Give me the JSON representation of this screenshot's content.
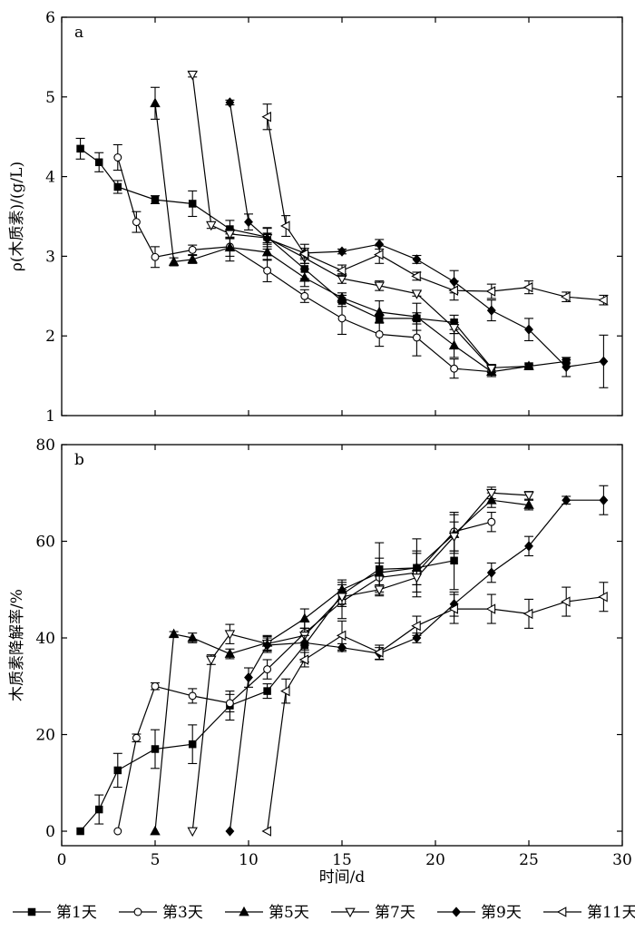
{
  "chart_data": [
    {
      "type": "line",
      "title": "a",
      "xlabel": "",
      "ylabel": "ρ(木质素)/(g/L)",
      "xlim": [
        0,
        30
      ],
      "ylim": [
        1,
        6
      ],
      "xticks": [
        0,
        5,
        10,
        15,
        20,
        25,
        30
      ],
      "yticks": [
        1,
        2,
        3,
        4,
        5,
        6
      ],
      "grid": false,
      "series": [
        {
          "name": "第1天",
          "marker": "square-filled",
          "x": [
            1,
            2,
            3,
            5,
            7,
            9,
            11,
            13,
            15,
            17,
            19,
            21,
            23,
            25,
            27
          ],
          "y": [
            4.35,
            4.18,
            3.87,
            3.71,
            3.66,
            3.34,
            3.24,
            2.84,
            2.44,
            2.22,
            2.22,
            2.17,
            1.6,
            1.62,
            1.68
          ],
          "err": [
            0.13,
            0.12,
            0.08,
            0.05,
            0.16,
            0.11,
            0.12,
            0.12,
            0.07,
            0.05,
            0.07,
            0.09,
            0.04,
            0.02,
            0.02
          ]
        },
        {
          "name": "第3天",
          "marker": "circle-open",
          "x": [
            3,
            4,
            5,
            7,
            9,
            11,
            13,
            15,
            17,
            19,
            21,
            23
          ],
          "y": [
            4.24,
            3.43,
            2.99,
            3.08,
            3.12,
            2.82,
            2.5,
            2.22,
            2.02,
            1.98,
            1.59,
            1.55
          ],
          "err": [
            0.16,
            0.13,
            0.13,
            0.06,
            0.12,
            0.14,
            0.08,
            0.2,
            0.15,
            0.23,
            0.12,
            0.06
          ]
        },
        {
          "name": "第5天",
          "marker": "triangle-up-filled",
          "x": [
            5,
            6,
            7,
            9,
            11,
            13,
            15,
            17,
            19,
            21,
            23,
            25
          ],
          "y": [
            4.92,
            2.93,
            2.96,
            3.11,
            3.05,
            2.73,
            2.48,
            2.3,
            2.24,
            1.88,
            1.55,
            1.62
          ],
          "err": [
            0.2,
            0.05,
            0.05,
            0.17,
            0.1,
            0.11,
            0.06,
            0.14,
            0.17,
            0.15,
            0.06,
            0.04
          ]
        },
        {
          "name": "第7天",
          "marker": "triangle-down-open",
          "x": [
            7,
            8,
            9,
            11,
            13,
            15,
            17,
            19,
            21,
            23
          ],
          "y": [
            5.28,
            3.39,
            3.28,
            3.23,
            2.98,
            2.72,
            2.63,
            2.53,
            2.1,
            1.59
          ],
          "err": [
            0.03,
            0.04,
            0.06,
            0.06,
            0.07,
            0.06,
            0.06,
            0.03,
            0.07,
            0.05
          ]
        },
        {
          "name": "第9天",
          "marker": "diamond-filled",
          "x": [
            9,
            10,
            11,
            13,
            15,
            17,
            19,
            21,
            23,
            25,
            27,
            29
          ],
          "y": [
            4.93,
            3.43,
            3.22,
            3.04,
            3.06,
            3.15,
            2.96,
            2.68,
            2.32,
            2.08,
            1.61,
            1.68
          ],
          "err": [
            0.03,
            0.1,
            0.13,
            0.06,
            0.03,
            0.06,
            0.05,
            0.14,
            0.13,
            0.14,
            0.12,
            0.33
          ]
        },
        {
          "name": "第11天",
          "marker": "triangle-left-open",
          "x": [
            11,
            12,
            13,
            15,
            17,
            19,
            21,
            23,
            25,
            27,
            29
          ],
          "y": [
            4.75,
            3.38,
            3.03,
            2.82,
            3.02,
            2.75,
            2.57,
            2.56,
            2.61,
            2.49,
            2.45
          ],
          "err": [
            0.16,
            0.13,
            0.12,
            0.07,
            0.11,
            0.05,
            0.12,
            0.09,
            0.08,
            0.06,
            0.06
          ]
        }
      ]
    },
    {
      "type": "line",
      "title": "b",
      "xlabel": "时间/d",
      "ylabel": "木质素降解率/%",
      "xlim": [
        0,
        30
      ],
      "ylim": [
        -3,
        80
      ],
      "xticks": [
        0,
        5,
        10,
        15,
        20,
        25,
        30
      ],
      "yticks": [
        0,
        20,
        40,
        60,
        80
      ],
      "grid": false,
      "series": [
        {
          "name": "第1天",
          "marker": "square-filled",
          "x": [
            1,
            2,
            3,
            5,
            7,
            9,
            11,
            13,
            15,
            17,
            19,
            21
          ],
          "y": [
            0,
            4.5,
            12.6,
            17.0,
            18.0,
            26.0,
            29.0,
            38.5,
            49.0,
            54.2,
            54.5,
            56.0
          ],
          "err": [
            0,
            3.0,
            3.5,
            4.0,
            4.0,
            3.0,
            1.5,
            3.5,
            2.5,
            5.5,
            6.0,
            6.0
          ]
        },
        {
          "name": "第3天",
          "marker": "circle-open",
          "x": [
            3,
            4,
            5,
            7,
            9,
            11,
            13,
            15,
            17,
            19,
            21,
            23
          ],
          "y": [
            0,
            19.3,
            30.0,
            28.0,
            26.5,
            33.5,
            41.0,
            47.5,
            52.5,
            53.5,
            62.0,
            64.0
          ],
          "err": [
            0,
            0.8,
            0.7,
            1.5,
            1.8,
            2.0,
            2.5,
            3.5,
            3.0,
            4.0,
            4.0,
            2.0
          ]
        },
        {
          "name": "第5天",
          "marker": "triangle-up-filled",
          "x": [
            5,
            6,
            7,
            9,
            11,
            13,
            15,
            17,
            19,
            21,
            23,
            25
          ],
          "y": [
            0,
            40.8,
            40.0,
            36.7,
            39.0,
            44.0,
            50.0,
            53.5,
            54.5,
            61.5,
            68.5,
            67.5
          ],
          "err": [
            0,
            0.5,
            1.0,
            1.0,
            1.5,
            2.0,
            2.0,
            3.0,
            3.5,
            4.0,
            1.5,
            1.0
          ]
        },
        {
          "name": "第7天",
          "marker": "triangle-down-open",
          "x": [
            7,
            8,
            9,
            11,
            13,
            15,
            17,
            19,
            21,
            23,
            25
          ],
          "y": [
            0,
            35.5,
            40.8,
            38.8,
            40.5,
            48.5,
            50.0,
            52.5,
            61.0,
            70.0,
            69.5
          ],
          "err": [
            0,
            1.0,
            2.0,
            1.5,
            1.5,
            1.5,
            1.0,
            1.5,
            3.0,
            1.2,
            0.8
          ]
        },
        {
          "name": "第9天",
          "marker": "diamond-filled",
          "x": [
            9,
            10,
            11,
            13,
            15,
            17,
            19,
            21,
            23,
            25,
            27,
            29
          ],
          "y": [
            0,
            31.8,
            38.5,
            39.0,
            38.0,
            36.8,
            40.0,
            47.0,
            53.5,
            59.0,
            68.5,
            68.5
          ],
          "err": [
            0,
            2.0,
            1.5,
            1.5,
            0.8,
            1.2,
            1.0,
            2.5,
            2.0,
            2.0,
            0.8,
            3.0
          ]
        },
        {
          "name": "第11天",
          "marker": "triangle-left-open",
          "x": [
            11,
            12,
            13,
            15,
            17,
            19,
            21,
            23,
            25,
            27,
            29
          ],
          "y": [
            0,
            29.0,
            35.5,
            40.5,
            37.0,
            42.5,
            46.0,
            46.0,
            45.0,
            47.5,
            48.5
          ],
          "err": [
            0,
            2.5,
            1.5,
            3.0,
            1.5,
            2.0,
            3.0,
            3.0,
            3.0,
            3.0,
            3.0
          ]
        }
      ]
    }
  ]
}
